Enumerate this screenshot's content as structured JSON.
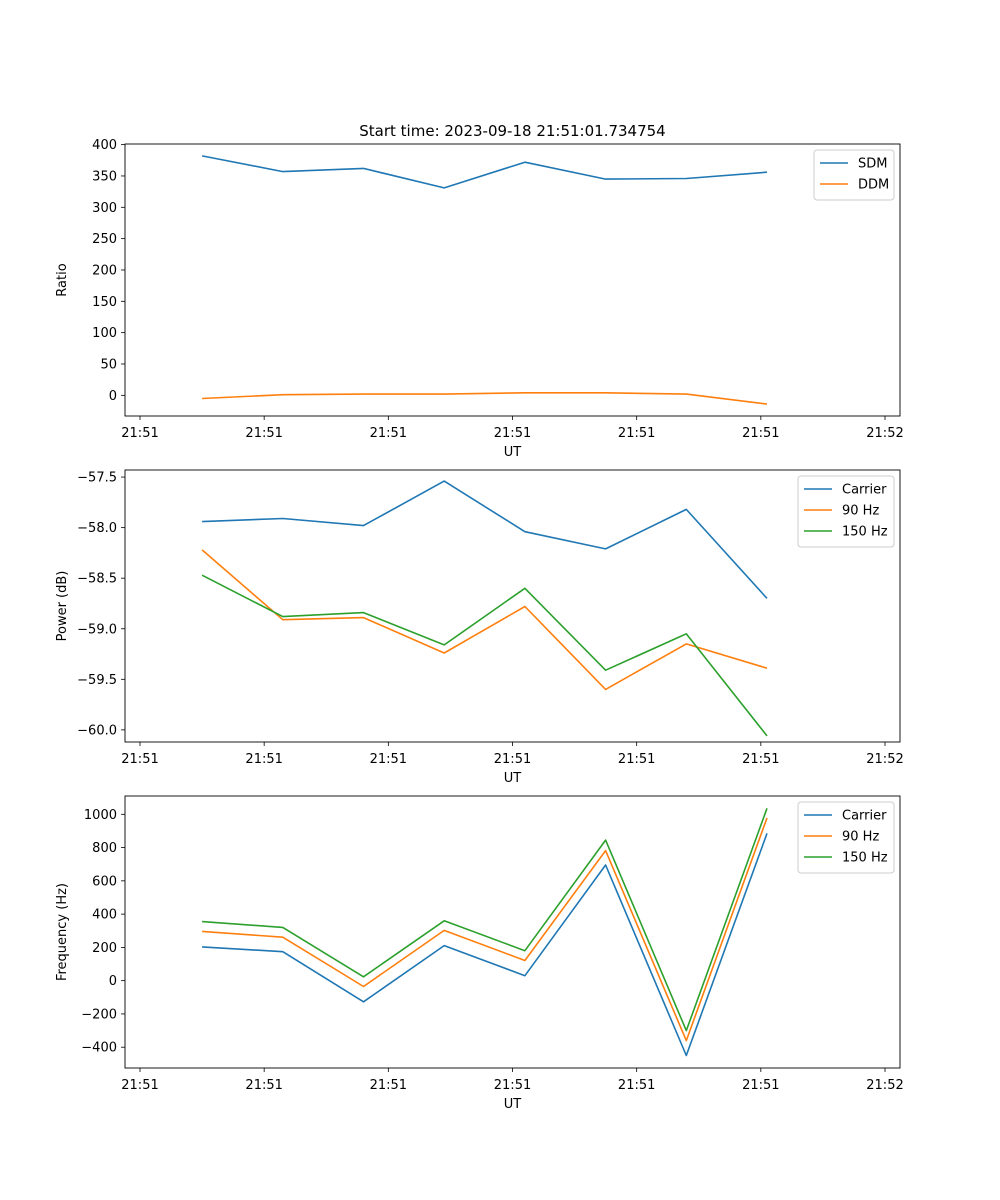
{
  "figure": {
    "title": "Start time: 2023-09-18 21:51:01.734754"
  },
  "chart_data": [
    {
      "type": "line",
      "title": "Start time: 2023-09-18 21:51:01.734754",
      "xlabel": "UT",
      "ylabel": "Ratio",
      "x": [
        0.5,
        1.15,
        1.8,
        2.45,
        3.1,
        3.75,
        4.4,
        5.05
      ],
      "xlim": [
        0,
        6
      ],
      "x_tick_positions": [
        0,
        1,
        2,
        3,
        4,
        5,
        6
      ],
      "x_tick_labels": [
        "21:51",
        "21:51",
        "21:51",
        "21:51",
        "21:51",
        "21:51",
        "21:52"
      ],
      "ylim": [
        -33,
        401
      ],
      "y_ticks": [
        0,
        50,
        100,
        150,
        200,
        250,
        300,
        350,
        400
      ],
      "legend_position": "top-right",
      "series": [
        {
          "name": "SDM",
          "color": "#1f77b4",
          "values": [
            382,
            357,
            362,
            331,
            372,
            345,
            346,
            356
          ]
        },
        {
          "name": "DDM",
          "color": "#ff7f0e",
          "values": [
            -5,
            1,
            2,
            2,
            4,
            4,
            2,
            -14
          ]
        }
      ]
    },
    {
      "type": "line",
      "xlabel": "UT",
      "ylabel": "Power (dB)",
      "x": [
        0.5,
        1.15,
        1.8,
        2.45,
        3.1,
        3.75,
        4.4,
        5.05
      ],
      "xlim": [
        0,
        6
      ],
      "x_tick_positions": [
        0,
        1,
        2,
        3,
        4,
        5,
        6
      ],
      "x_tick_labels": [
        "21:51",
        "21:51",
        "21:51",
        "21:51",
        "21:51",
        "21:51",
        "21:52"
      ],
      "ylim": [
        -60.12,
        -57.43
      ],
      "y_ticks": [
        -60.0,
        -59.5,
        -59.0,
        -58.5,
        -58.0,
        -57.5
      ],
      "y_tick_labels": [
        "−60.0",
        "−59.5",
        "−59.0",
        "−58.5",
        "−58.0",
        "−57.5"
      ],
      "legend_position": "top-right",
      "series": [
        {
          "name": "Carrier",
          "color": "#1f77b4",
          "values": [
            -57.94,
            -57.91,
            -57.98,
            -57.54,
            -58.04,
            -58.21,
            -57.82,
            -58.7
          ]
        },
        {
          "name": "90 Hz",
          "color": "#ff7f0e",
          "values": [
            -58.22,
            -58.91,
            -58.89,
            -59.24,
            -58.78,
            -59.6,
            -59.15,
            -59.39
          ]
        },
        {
          "name": "150 Hz",
          "color": "#2ca02c",
          "values": [
            -58.47,
            -58.88,
            -58.84,
            -59.16,
            -58.6,
            -59.41,
            -59.05,
            -60.06
          ]
        }
      ]
    },
    {
      "type": "line",
      "xlabel": "UT",
      "ylabel": "Frequency (Hz)",
      "x": [
        0.5,
        1.15,
        1.8,
        2.45,
        3.1,
        3.75,
        4.4,
        5.05
      ],
      "xlim": [
        0,
        6
      ],
      "x_tick_positions": [
        0,
        1,
        2,
        3,
        4,
        5,
        6
      ],
      "x_tick_labels": [
        "21:51",
        "21:51",
        "21:51",
        "21:51",
        "21:51",
        "21:51",
        "21:52"
      ],
      "ylim": [
        -525,
        1110
      ],
      "y_ticks": [
        -400,
        -200,
        0,
        200,
        400,
        600,
        800,
        1000
      ],
      "y_tick_labels": [
        "−400",
        "−200",
        "0",
        "200",
        "400",
        "600",
        "800",
        "1000"
      ],
      "legend_position": "top-right",
      "series": [
        {
          "name": "Carrier",
          "color": "#1f77b4",
          "values": [
            203,
            174,
            -127,
            211,
            30,
            695,
            -450,
            885
          ]
        },
        {
          "name": "90 Hz",
          "color": "#ff7f0e",
          "values": [
            296,
            261,
            -35,
            302,
            121,
            782,
            -360,
            978
          ]
        },
        {
          "name": "150 Hz",
          "color": "#2ca02c",
          "values": [
            355,
            320,
            23,
            360,
            180,
            845,
            -300,
            1036
          ]
        }
      ]
    }
  ]
}
